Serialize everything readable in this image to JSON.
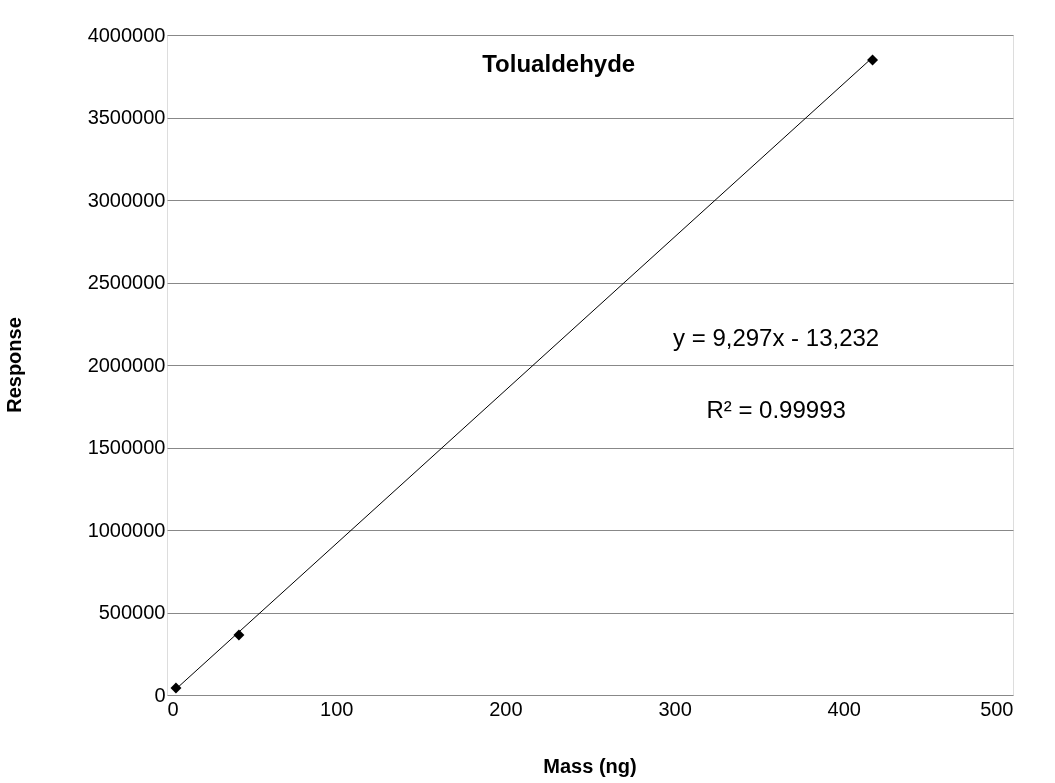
{
  "chart_data": {
    "type": "scatter",
    "title": "Tolualdehyde",
    "xlabel": "Mass (ng)",
    "ylabel": "Response",
    "series": [
      {
        "color": "#000000",
        "marker": "diamond",
        "x": [
          5.3,
          42.5,
          417
        ],
        "values": [
          42000,
          364000,
          3848000
        ]
      },
      {
        "type": "line",
        "color": "#000000",
        "marker": "none",
        "x": [
          5.3,
          417
        ],
        "values": [
          36000,
          3864000
        ]
      }
    ],
    "xlim": [
      0,
      500
    ],
    "xticks": [
      0,
      100,
      200,
      300,
      400,
      500
    ],
    "ylim": [
      0,
      4000000
    ],
    "yticks": [
      0,
      500000,
      1000000,
      1500000,
      2000000,
      2500000,
      3000000,
      3500000,
      4000000
    ],
    "grid": "y",
    "annotations": [
      "y = 9,297x - 13,232",
      "R² = 0.99993"
    ]
  }
}
